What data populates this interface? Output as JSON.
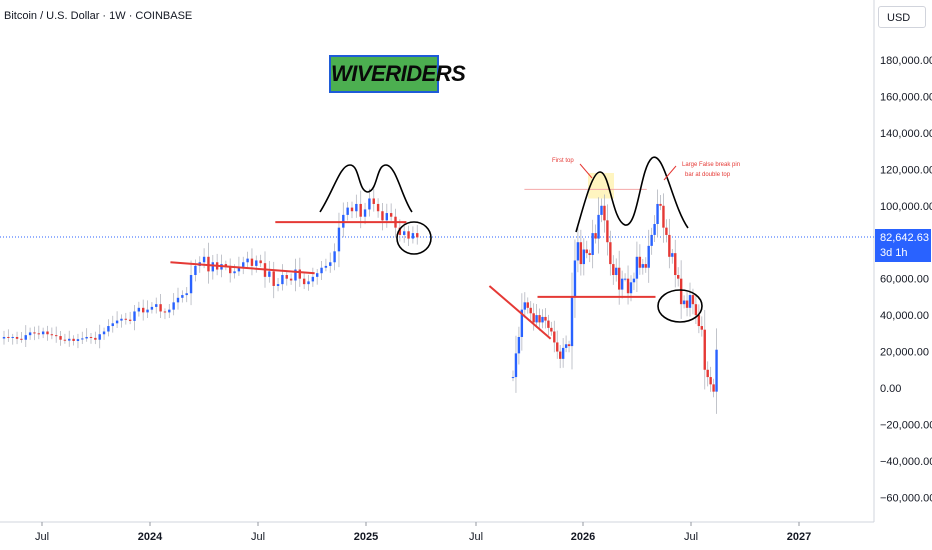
{
  "header": {
    "symbol_title": "Bitcoin / U.S. Dollar · 1W · COINBASE",
    "currency": "USD"
  },
  "brand": {
    "label": "WIVERIDERS"
  },
  "current_price": {
    "price": "82,642.63",
    "countdown": "3d 1h",
    "color": "#2962ff"
  },
  "annotations": {
    "first_top": "First top",
    "false_break": [
      "Large False break pin",
      "bar at double top"
    ]
  },
  "colors": {
    "up": "#2962ff",
    "down": "#e53935",
    "trendline": "#e53935",
    "drawing": "#000000",
    "highlight": "#fff3b0"
  },
  "chart_data": {
    "type": "candlestick",
    "y_axis_ticks": [
      "180,000.00",
      "160,000.00",
      "140,000.00",
      "120,000.00",
      "100,000.00",
      "80,000.00",
      "60,000.00",
      "40,000.00",
      "20,000.00",
      "0.00",
      "−20,000.00",
      "−40,000.00",
      "−60,000.00"
    ],
    "y_tick_values": [
      180000,
      160000,
      140000,
      120000,
      100000,
      80000,
      60000,
      40000,
      20000,
      0,
      -20000,
      -40000,
      -60000
    ],
    "x_axis_ticks": [
      "Jul",
      "2024",
      "Jul",
      "2025",
      "Jul",
      "2026",
      "Jul",
      "2027"
    ],
    "ylim": [
      -70000,
      200000
    ],
    "left_series_closes": [
      28000,
      27500,
      28000,
      27000,
      26500,
      29000,
      30500,
      30000,
      29500,
      31000,
      29500,
      29000,
      28500,
      26500,
      26000,
      27000,
      25800,
      26800,
      27200,
      28000,
      27500,
      26500,
      29500,
      31000,
      34000,
      35500,
      37000,
      38000,
      37500,
      36800,
      42000,
      44000,
      41500,
      43000,
      44500,
      46000,
      42000,
      41500,
      43000,
      47000,
      49500,
      51000,
      52000,
      62000,
      67000,
      69000,
      72000,
      64000,
      69000,
      65000,
      68000,
      67000,
      63000,
      64000,
      66500,
      69000,
      71000,
      67000,
      70000,
      68500,
      61000,
      64000,
      56000,
      57000,
      62000,
      60000,
      59000,
      65000,
      60000,
      57000,
      58500,
      61000,
      63000,
      66000,
      67000,
      69000,
      75000,
      88000,
      95000,
      99000,
      97000,
      101000,
      94000,
      98000,
      104000,
      101000,
      97000,
      92000,
      96000,
      94000,
      88000,
      84000,
      86000,
      82000,
      85000,
      82642
    ],
    "right_series_closes": [
      6000,
      19000,
      28000,
      43000,
      47000,
      44000,
      41000,
      36000,
      40000,
      36000,
      39000,
      37000,
      33000,
      31000,
      25000,
      20000,
      16000,
      22000,
      24000,
      23000,
      50000,
      70000,
      80000,
      68000,
      76000,
      74000,
      73000,
      85000,
      82000,
      95000,
      100000,
      92000,
      80000,
      68000,
      62000,
      66000,
      54000,
      60000,
      60000,
      52000,
      58000,
      60000,
      72000,
      66000,
      68000,
      66000,
      78000,
      84000,
      90000,
      101000,
      100000,
      88000,
      84000,
      72000,
      74000,
      62000,
      60000,
      46000,
      48000,
      44000,
      51000,
      46000,
      40000,
      34000,
      32000,
      10000,
      6000,
      2000,
      -2000,
      21000
    ],
    "trendlines": [
      {
        "from": [
          0.195,
          69000
        ],
        "to": [
          0.36,
          63000
        ]
      },
      {
        "from": [
          0.315,
          91000
        ],
        "to": [
          0.465,
          91000
        ]
      },
      {
        "from": [
          0.56,
          56000
        ],
        "to": [
          0.63,
          27000
        ]
      },
      {
        "from": [
          0.615,
          50000
        ],
        "to": [
          0.75,
          50000
        ]
      },
      {
        "from": [
          0.6,
          109000
        ],
        "to": [
          0.74,
          109000
        ]
      }
    ]
  }
}
